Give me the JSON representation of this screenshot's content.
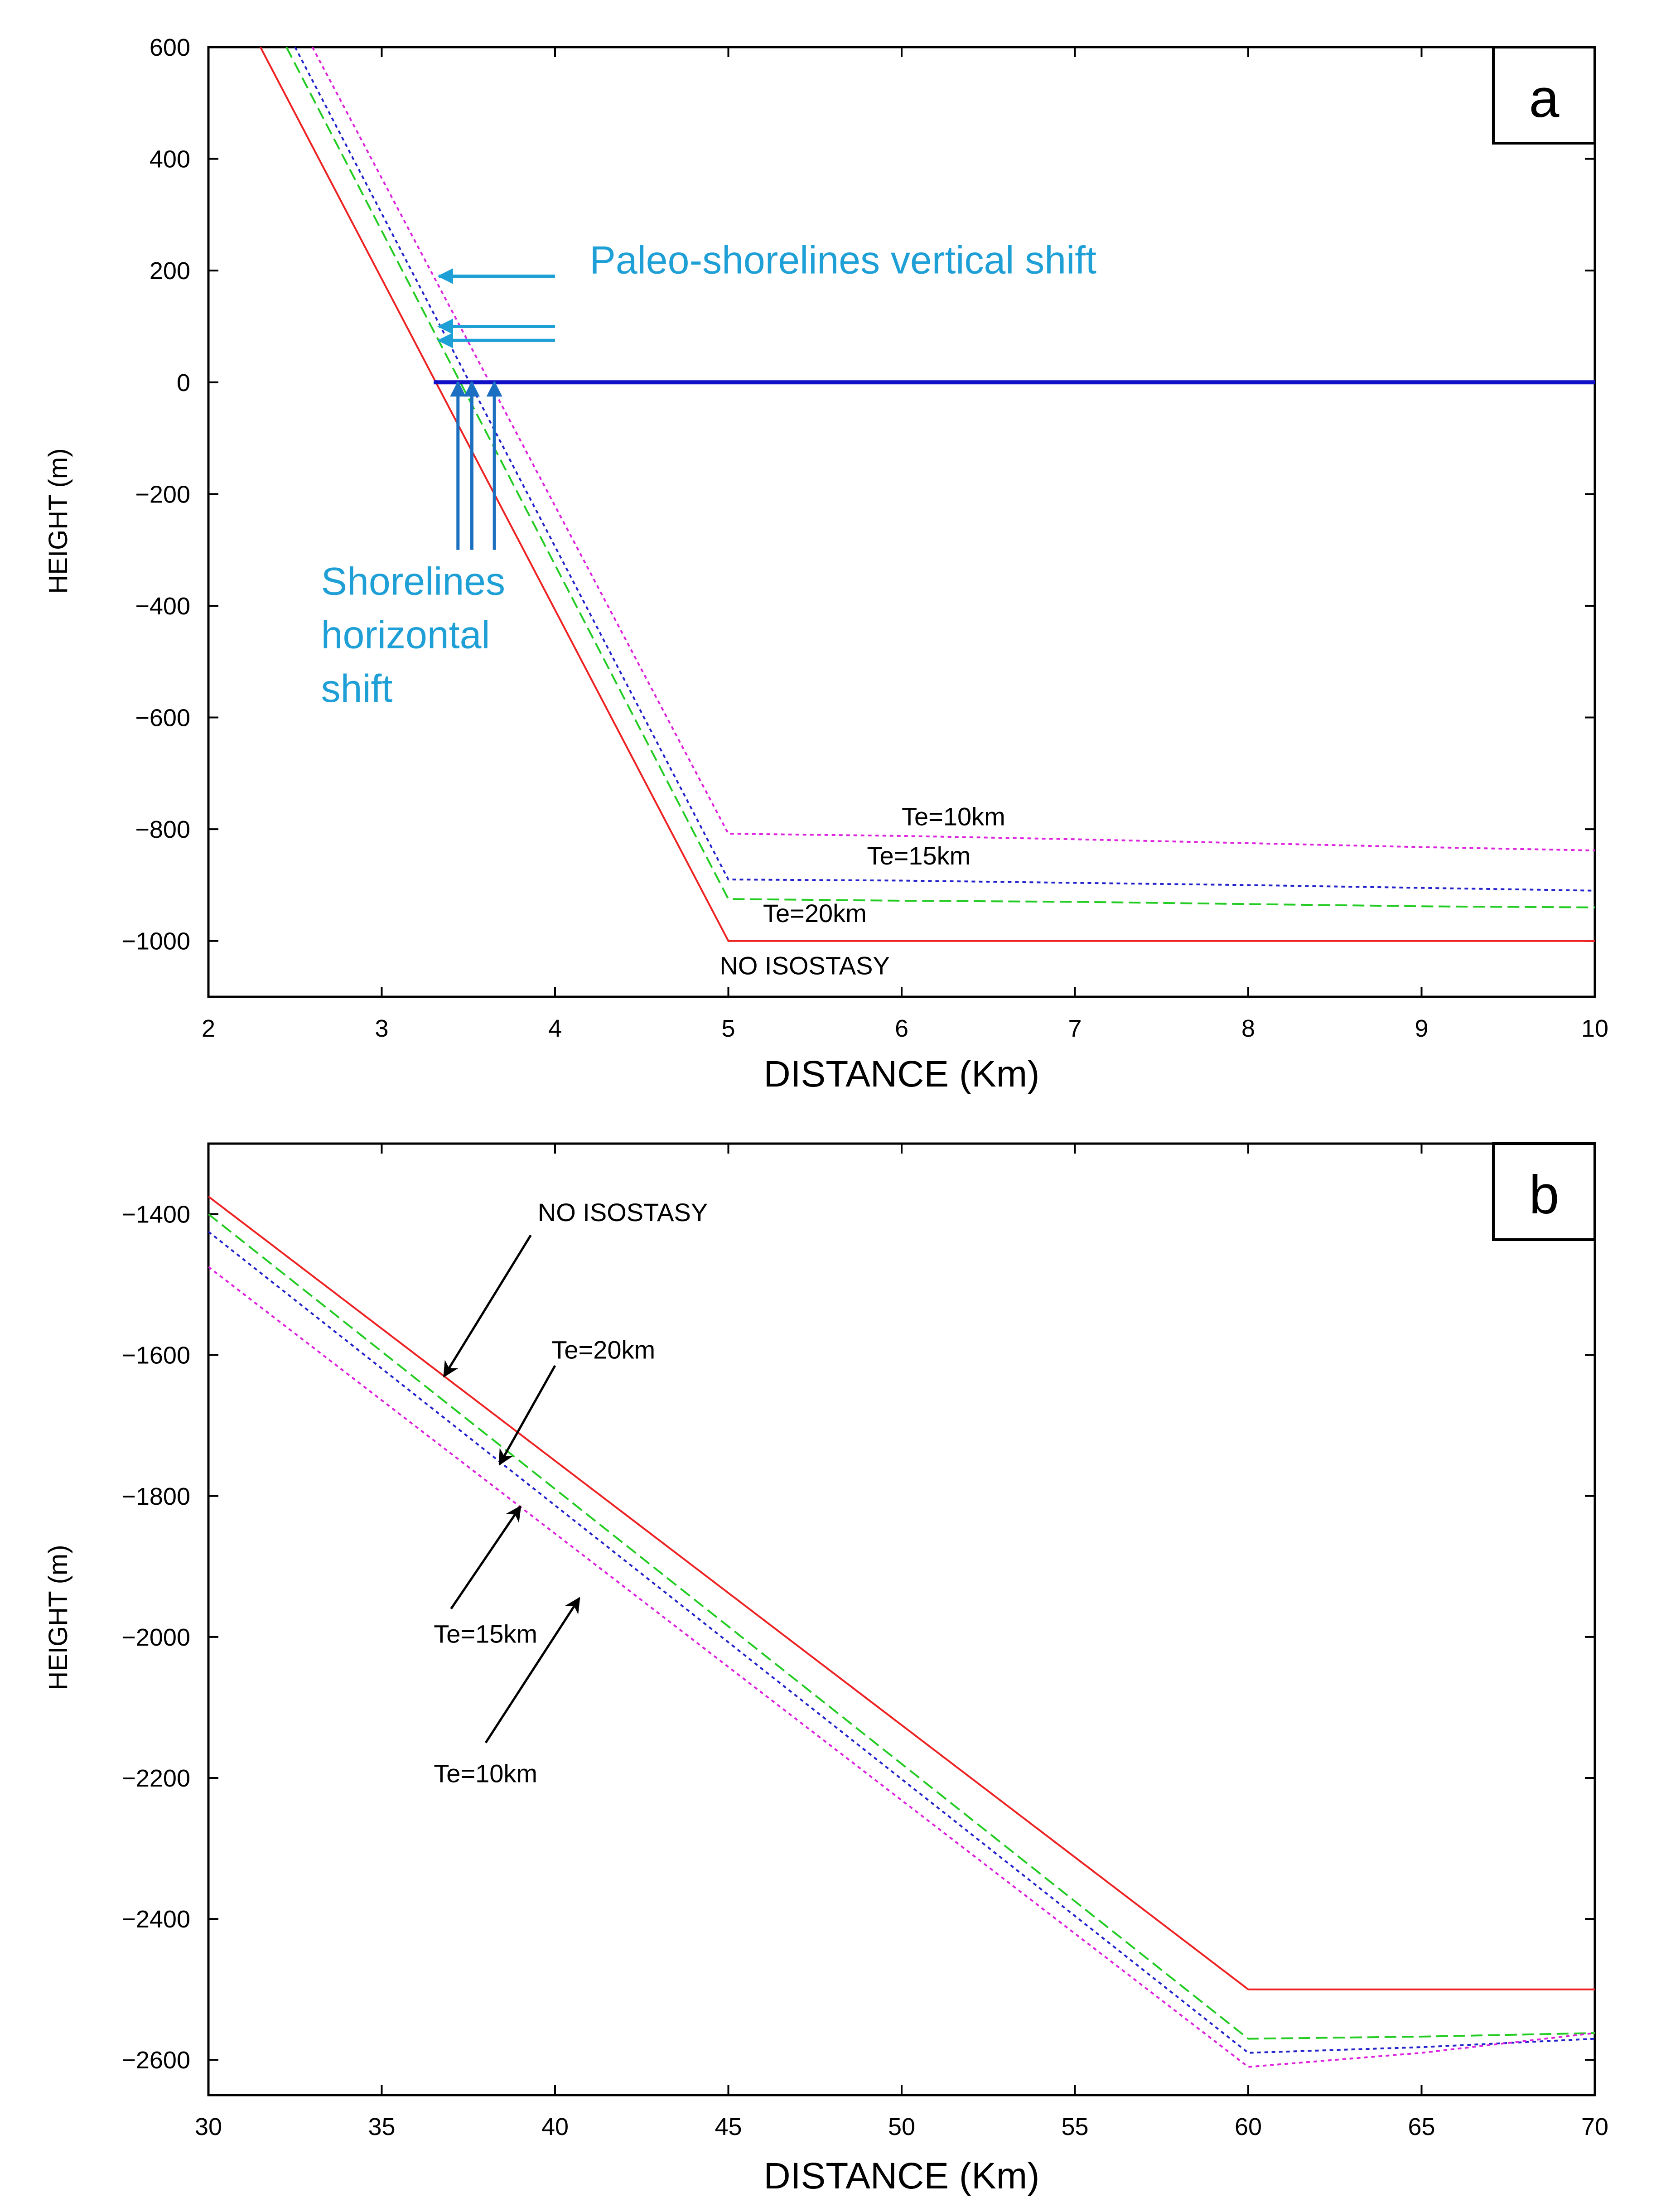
{
  "colors": {
    "no_isostasy": "#ee2222",
    "te20": "#22cc22",
    "te15": "#2222cc",
    "te10": "#dd22dd",
    "sea_level": "#1010c8",
    "annotation": "#1e9fd6",
    "blue_arrow": "#1a6fc0"
  },
  "chart_data": [
    {
      "panel": "a",
      "type": "line",
      "title": "",
      "xlabel": "DISTANCE (Km)",
      "ylabel": "HEIGHT (m)",
      "xlim": [
        2,
        10
      ],
      "ylim": [
        -1100,
        600
      ],
      "xticks": [
        2,
        3,
        4,
        5,
        6,
        7,
        8,
        9,
        10
      ],
      "yticks": [
        600,
        400,
        200,
        0,
        -200,
        -400,
        -600,
        -800,
        -1000
      ],
      "series": [
        {
          "name": "NO ISOSTASY",
          "color_key": "no_isostasy",
          "dash": "solid",
          "x": [
            2.3,
            5,
            10
          ],
          "y": [
            600,
            -1000,
            -1000
          ]
        },
        {
          "name": "Te=20km",
          "color_key": "te20",
          "dash": "dashed",
          "x": [
            2.45,
            5,
            6,
            7,
            8,
            9,
            10
          ],
          "y": [
            600,
            -925,
            -928,
            -930,
            -934,
            -938,
            -940
          ]
        },
        {
          "name": "Te=15km",
          "color_key": "te15",
          "dash": "dotted",
          "x": [
            2.5,
            5,
            6,
            7,
            8,
            9,
            10
          ],
          "y": [
            600,
            -890,
            -892,
            -896,
            -900,
            -905,
            -910
          ]
        },
        {
          "name": "Te=10km",
          "color_key": "te10",
          "dash": "dotted",
          "x": [
            2.6,
            5,
            6,
            7,
            8,
            9,
            10
          ],
          "y": [
            600,
            -808,
            -812,
            -818,
            -825,
            -832,
            -838
          ]
        },
        {
          "name": "sea level",
          "color_key": "sea_level",
          "dash": "solid",
          "x": [
            3.3,
            10
          ],
          "y": [
            0,
            0
          ]
        }
      ],
      "curve_labels": [
        {
          "text": "Te=10km",
          "x": 6.0,
          "y": -793
        },
        {
          "text": "Te=15km",
          "x": 5.8,
          "y": -863
        },
        {
          "text": "Te=20km",
          "x": 5.2,
          "y": -966
        },
        {
          "text": "NO ISOSTASY",
          "x": 4.95,
          "y": -1060
        }
      ],
      "annotations": [
        {
          "text": "Paleo-shorelines vertical shift",
          "x": 4.2,
          "y": 195
        },
        {
          "text": "Shorelines",
          "x": 2.65,
          "y": -380
        },
        {
          "text": "horizontal",
          "x": 2.65,
          "y": -476
        },
        {
          "text": "shift",
          "x": 2.65,
          "y": -572
        }
      ],
      "vertical_shift_arrows": [
        {
          "from_x": 4.0,
          "to_x": 3.33,
          "y": 190
        },
        {
          "from_x": 4.0,
          "to_x": 3.33,
          "y": 100
        },
        {
          "from_x": 4.0,
          "to_x": 3.33,
          "y": 75
        }
      ],
      "horizontal_shift_arrows": [
        {
          "x": 3.44,
          "from_y": -300,
          "to_y": 0
        },
        {
          "x": 3.52,
          "from_y": -300,
          "to_y": 0
        },
        {
          "x": 3.65,
          "from_y": -300,
          "to_y": 0
        }
      ]
    },
    {
      "panel": "b",
      "type": "line",
      "title": "",
      "xlabel": "DISTANCE (Km)",
      "ylabel": "HEIGHT (m)",
      "xlim": [
        30,
        70
      ],
      "ylim": [
        -2650,
        -1300
      ],
      "xticks": [
        30,
        35,
        40,
        45,
        50,
        55,
        60,
        65,
        70
      ],
      "yticks": [
        -1400,
        -1600,
        -1800,
        -2000,
        -2200,
        -2400,
        -2600
      ],
      "series": [
        {
          "name": "NO ISOSTASY",
          "color_key": "no_isostasy",
          "dash": "solid",
          "x": [
            30,
            60,
            70
          ],
          "y": [
            -1375,
            -2500,
            -2500
          ]
        },
        {
          "name": "Te=20km",
          "color_key": "te20",
          "dash": "dashed",
          "x": [
            30,
            60,
            65,
            70
          ],
          "y": [
            -1400,
            -2570,
            -2567,
            -2562
          ]
        },
        {
          "name": "Te=15km",
          "color_key": "te15",
          "dash": "dotted",
          "x": [
            30,
            60,
            65,
            70
          ],
          "y": [
            -1425,
            -2590,
            -2582,
            -2570
          ]
        },
        {
          "name": "Te=10km",
          "color_key": "te10",
          "dash": "dotted",
          "x": [
            30,
            60,
            65,
            70
          ],
          "y": [
            -1475,
            -2610,
            -2590,
            -2562
          ]
        }
      ],
      "curve_labels": [
        {
          "text": "NO ISOSTASY",
          "x": 39.5,
          "y": -1410
        },
        {
          "text": "Te=20km",
          "x": 39.9,
          "y": -1605
        },
        {
          "text": "Te=15km",
          "x": 36.5,
          "y": -2008
        },
        {
          "text": "Te=10km",
          "x": 36.5,
          "y": -2206
        }
      ],
      "label_arrows": [
        {
          "from": [
            39.3,
            -1430
          ],
          "to": [
            36.8,
            -1630
          ]
        },
        {
          "from": [
            40.0,
            -1615
          ],
          "to": [
            38.4,
            -1755
          ]
        },
        {
          "from": [
            37.0,
            -1960
          ],
          "to": [
            39.0,
            -1815
          ]
        },
        {
          "from": [
            38.0,
            -2150
          ],
          "to": [
            40.7,
            -1945
          ]
        }
      ]
    }
  ]
}
